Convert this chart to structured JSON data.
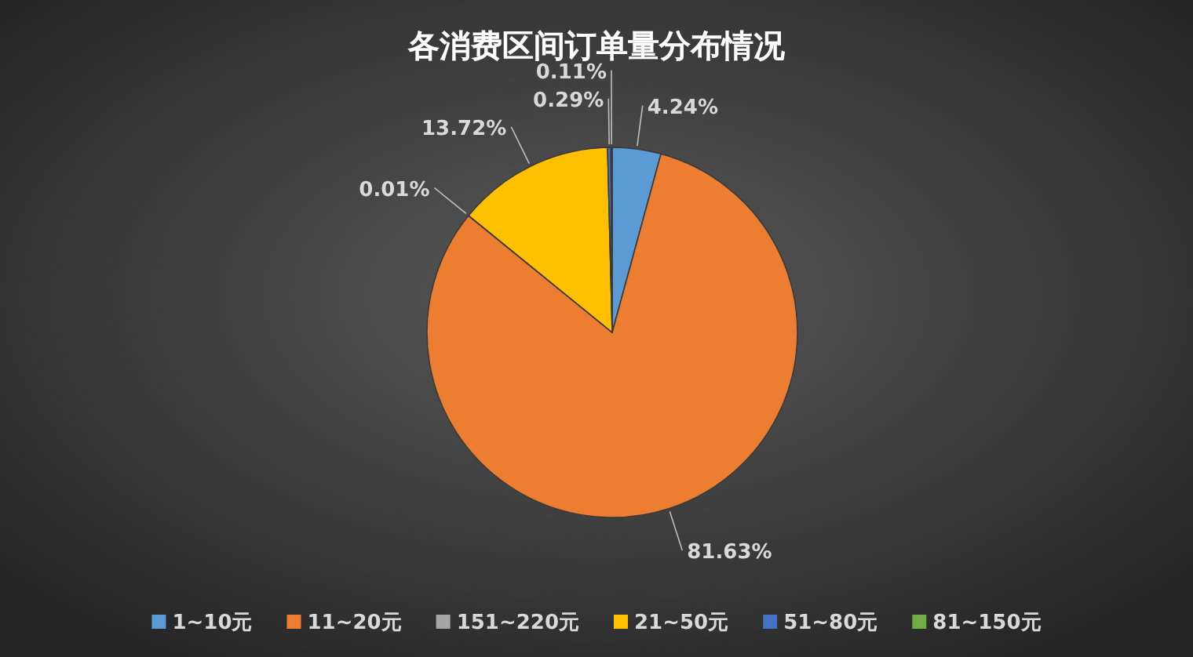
{
  "chart_data": {
    "type": "pie",
    "title": "各消费区间订单量分布情况",
    "categories": [
      "1~10元",
      "11~20元",
      "151~220元",
      "21~50元",
      "51~80元",
      "81~150元"
    ],
    "values": [
      4.24,
      81.63,
      0.01,
      13.72,
      0.29,
      0.11
    ],
    "value_labels": [
      "4.24%",
      "81.63%",
      "0.01%",
      "13.72%",
      "0.29%",
      "0.11%"
    ],
    "colors": [
      "#5b9bd5",
      "#ed7d31",
      "#a5a5a5",
      "#ffc000",
      "#4472c4",
      "#70ad47"
    ],
    "legend": "bottom"
  }
}
